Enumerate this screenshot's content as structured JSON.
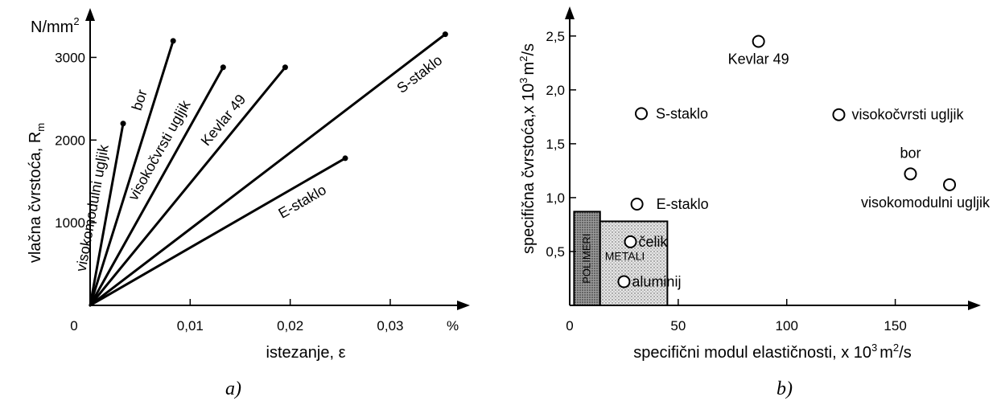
{
  "chart_data": [
    {
      "type": "line",
      "panel_label": "a)",
      "xlabel": "istezanje, ε",
      "ylabel": "vlačna čvrstoća, R",
      "ylabel_sub": "m",
      "y_unit": "N/mm",
      "y_unit_sup": "2",
      "x_unit": "%",
      "xlim": [
        0,
        0.037
      ],
      "ylim": [
        0,
        3500
      ],
      "x_ticks": [
        0,
        0.01,
        0.02,
        0.03
      ],
      "x_tick_labels": [
        "0",
        "0,01",
        "0,02",
        "0,03"
      ],
      "y_ticks": [
        1000,
        2000,
        3000
      ],
      "y_tick_labels": [
        "1000",
        "2000",
        "3000"
      ],
      "series": [
        {
          "name": "visokomodulni ugljik",
          "x": [
            0,
            0.0033
          ],
          "y": [
            0,
            2200
          ]
        },
        {
          "name": "bor",
          "x": [
            0,
            0.0083
          ],
          "y": [
            0,
            3200
          ]
        },
        {
          "name": "visokočvrsti ugljik",
          "x": [
            0,
            0.0133
          ],
          "y": [
            0,
            2880
          ]
        },
        {
          "name": "Kevlar 49",
          "x": [
            0,
            0.0195
          ],
          "y": [
            0,
            2880
          ]
        },
        {
          "name": "S-staklo",
          "x": [
            0,
            0.0355
          ],
          "y": [
            0,
            3280
          ]
        },
        {
          "name": "E-staklo",
          "x": [
            0,
            0.0255
          ],
          "y": [
            0,
            1780
          ]
        }
      ]
    },
    {
      "type": "scatter",
      "panel_label": "b)",
      "xlabel": "specifični modul elastičnosti, x 10",
      "xlabel_sup1": "3",
      "xlabel_mid": "m",
      "xlabel_sup2": "2",
      "xlabel_end": "/s",
      "ylabel": "specifična čvrstoća,x 10",
      "ylabel_sup1": "3",
      "ylabel_mid": "m",
      "ylabel_sup2": "2",
      "ylabel_end": "/s",
      "xlim": [
        0,
        185
      ],
      "ylim": [
        0,
        2.7
      ],
      "x_ticks": [
        0,
        50,
        100,
        150
      ],
      "x_tick_labels": [
        "0",
        "50",
        "100",
        "150"
      ],
      "y_ticks": [
        0.5,
        1.0,
        1.5,
        2.0,
        2.5
      ],
      "y_tick_labels": [
        "0,5",
        "1,0",
        "1,5",
        "2,0",
        "2,5"
      ],
      "points": [
        {
          "label": "Kevlar 49",
          "x": 87,
          "y": 2.45
        },
        {
          "label": "S-staklo",
          "x": 33,
          "y": 1.78
        },
        {
          "label": "visokočvrsti ugljik",
          "x": 124,
          "y": 1.77
        },
        {
          "label": "bor",
          "x": 157,
          "y": 1.22
        },
        {
          "label": "visokomodulni ugljik",
          "x": 175,
          "y": 1.12
        },
        {
          "label": "E-staklo",
          "x": 31,
          "y": 0.94
        },
        {
          "label": "čelik",
          "x": 28,
          "y": 0.59
        },
        {
          "label": "aluminij",
          "x": 25,
          "y": 0.22
        }
      ],
      "regions": [
        {
          "label": "POLIMERI",
          "x": [
            2,
            14
          ],
          "y": [
            0,
            0.87
          ]
        },
        {
          "label": "METALI",
          "x": [
            14,
            45
          ],
          "y": [
            0,
            0.78
          ]
        }
      ]
    }
  ]
}
